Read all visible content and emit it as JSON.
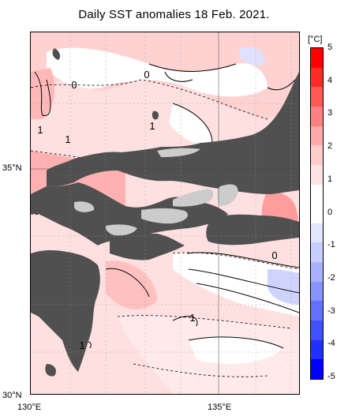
{
  "title": "Daily SST anomalies 18 Feb. 2021.",
  "colorbar": {
    "unit": "[°C]",
    "ticks": [
      "5",
      "4",
      "3",
      "2",
      "1",
      "0",
      "-1",
      "-2",
      "-3",
      "-4",
      "-5"
    ],
    "colors": [
      "#ff0000",
      "#ff2a2a",
      "#ff5656",
      "#ff8080",
      "#ffaaaa",
      "#ffcccc",
      "#ffe4e4",
      "#ffffff",
      "#ffffff",
      "#e2e6ff",
      "#c8ceff",
      "#aab2ff",
      "#8893ff",
      "#6470ff",
      "#4050ff",
      "#2030ff",
      "#0000ff"
    ]
  },
  "axes": {
    "lat_labels": [
      "35°N",
      "30°N"
    ],
    "lon_labels": [
      "130°E",
      "135°E"
    ]
  },
  "contour_labels": [
    "0",
    "0",
    "1",
    "1",
    "1",
    "0",
    "1",
    "1"
  ],
  "map": {
    "land_color": "#505050",
    "lake_color": "#cccccc"
  }
}
